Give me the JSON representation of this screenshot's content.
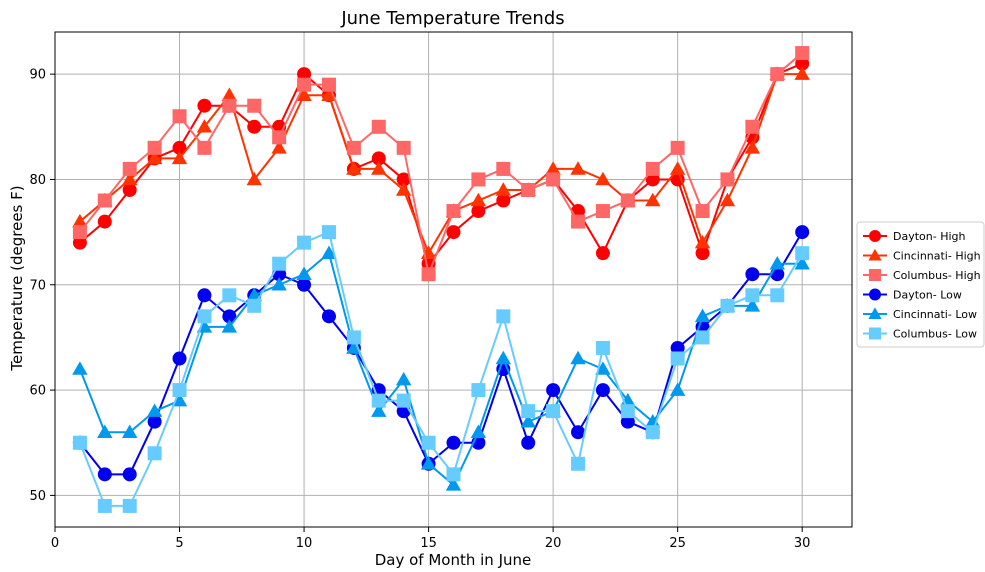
{
  "chart_data": {
    "type": "line",
    "title": "June Temperature Trends",
    "xlabel": "Day of Month in June",
    "ylabel": "Temperature (degrees F)",
    "xlim": [
      0,
      32
    ],
    "ylim": [
      47,
      94
    ],
    "xticks": [
      0,
      5,
      10,
      15,
      20,
      25,
      30
    ],
    "yticks": [
      50,
      60,
      70,
      80,
      90
    ],
    "grid": true,
    "legend_position": "right",
    "x": [
      1,
      2,
      3,
      4,
      5,
      6,
      7,
      8,
      9,
      10,
      11,
      12,
      13,
      14,
      15,
      16,
      17,
      18,
      19,
      20,
      21,
      22,
      23,
      24,
      25,
      26,
      27,
      28,
      29,
      30
    ],
    "series": [
      {
        "name": "Dayton- High",
        "color": "#ff0000",
        "marker": "circle",
        "values": [
          74,
          76,
          79,
          82,
          83,
          87,
          87,
          85,
          85,
          90,
          88,
          81,
          82,
          80,
          72,
          75,
          77,
          78,
          79,
          80,
          77,
          73,
          78,
          80,
          80,
          73,
          80,
          84,
          90,
          91
        ]
      },
      {
        "name": "Cincinnati- High",
        "color": "#ff3300",
        "marker": "triangle",
        "values": [
          76,
          78,
          80,
          82,
          82,
          85,
          88,
          80,
          83,
          88,
          88,
          81,
          81,
          79,
          73,
          77,
          78,
          79,
          79,
          81,
          81,
          80,
          78,
          78,
          81,
          74,
          78,
          83,
          90,
          90
        ]
      },
      {
        "name": "Columbus- High",
        "color": "#ff6666",
        "marker": "square",
        "values": [
          75,
          78,
          81,
          83,
          86,
          83,
          87,
          87,
          84,
          89,
          89,
          83,
          85,
          83,
          71,
          77,
          80,
          81,
          79,
          80,
          76,
          77,
          78,
          81,
          83,
          77,
          80,
          85,
          90,
          92
        ]
      },
      {
        "name": "Dayton- Low",
        "color": "#0000ee",
        "marker": "circle",
        "values": [
          55,
          52,
          52,
          57,
          63,
          69,
          67,
          69,
          71,
          70,
          67,
          64,
          60,
          58,
          53,
          55,
          55,
          62,
          55,
          60,
          56,
          60,
          57,
          56,
          64,
          66,
          68,
          71,
          71,
          75
        ]
      },
      {
        "name": "Cincinnati- Low",
        "color": "#0099ee",
        "marker": "triangle",
        "values": [
          62,
          56,
          56,
          58,
          59,
          66,
          66,
          69,
          70,
          71,
          73,
          64,
          58,
          61,
          53,
          51,
          56,
          63,
          57,
          58,
          63,
          62,
          59,
          57,
          60,
          67,
          68,
          68,
          72,
          72
        ]
      },
      {
        "name": "Columbus- Low",
        "color": "#66ccff",
        "marker": "square",
        "values": [
          55,
          49,
          49,
          54,
          60,
          67,
          69,
          68,
          72,
          74,
          75,
          65,
          59,
          59,
          55,
          52,
          60,
          67,
          58,
          58,
          53,
          64,
          58,
          56,
          63,
          65,
          68,
          69,
          69,
          73
        ]
      }
    ]
  }
}
